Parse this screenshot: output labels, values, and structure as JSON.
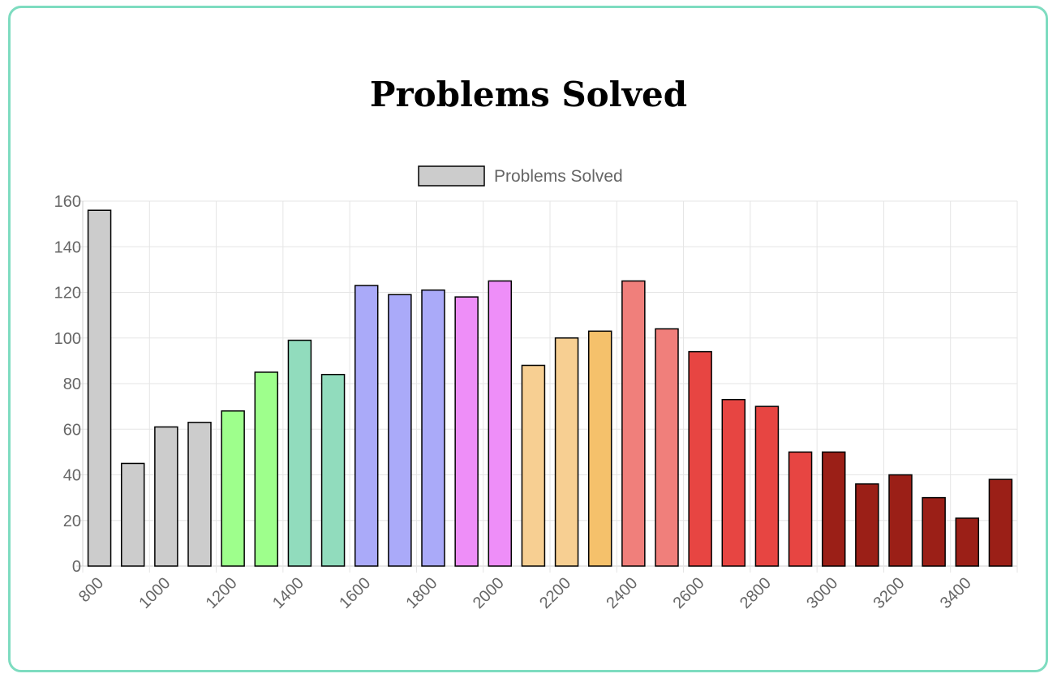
{
  "chart_data": {
    "type": "bar",
    "title": "Problems Solved",
    "legend": {
      "label": "Problems Solved",
      "placement": "top-center",
      "swatch_color": "#cccccc"
    },
    "categories": [
      800,
      900,
      1000,
      1100,
      1200,
      1300,
      1400,
      1500,
      1600,
      1700,
      1800,
      1900,
      2000,
      2100,
      2200,
      2300,
      2400,
      2500,
      2600,
      2700,
      2800,
      2900,
      3000,
      3100,
      3200,
      3300,
      3400,
      3500
    ],
    "x_tick_labels": [
      "800",
      "1000",
      "1200",
      "1400",
      "1600",
      "1800",
      "2000",
      "2200",
      "2400",
      "2600",
      "2800",
      "3000",
      "3200",
      "3400"
    ],
    "series": [
      {
        "name": "Problems Solved",
        "values": [
          156,
          45,
          61,
          63,
          68,
          85,
          99,
          84,
          123,
          119,
          121,
          118,
          125,
          88,
          100,
          103,
          125,
          104,
          94,
          73,
          70,
          50,
          50,
          36,
          40,
          30,
          21,
          38
        ],
        "colors": [
          "#cccccc",
          "#cccccc",
          "#cccccc",
          "#cccccc",
          "#9eff8c",
          "#9eff8c",
          "#91dcbd",
          "#91dcbd",
          "#aaaaf9",
          "#aaaaf9",
          "#aaaaf9",
          "#ee8ef8",
          "#ee8ef8",
          "#f7cf92",
          "#f7cf92",
          "#f5c16b",
          "#f07f7b",
          "#f07f7b",
          "#e74542",
          "#e74542",
          "#e74542",
          "#e74542",
          "#9b1f17",
          "#9b1f17",
          "#9b1f17",
          "#9b1f17",
          "#9b1f17",
          "#9b1f17"
        ]
      }
    ],
    "ylim": [
      0,
      160
    ],
    "y_ticks": [
      0,
      20,
      40,
      60,
      80,
      100,
      120,
      140,
      160
    ],
    "grid": true,
    "bar_border_color": "#000000",
    "grid_color": "#e5e5e5"
  }
}
